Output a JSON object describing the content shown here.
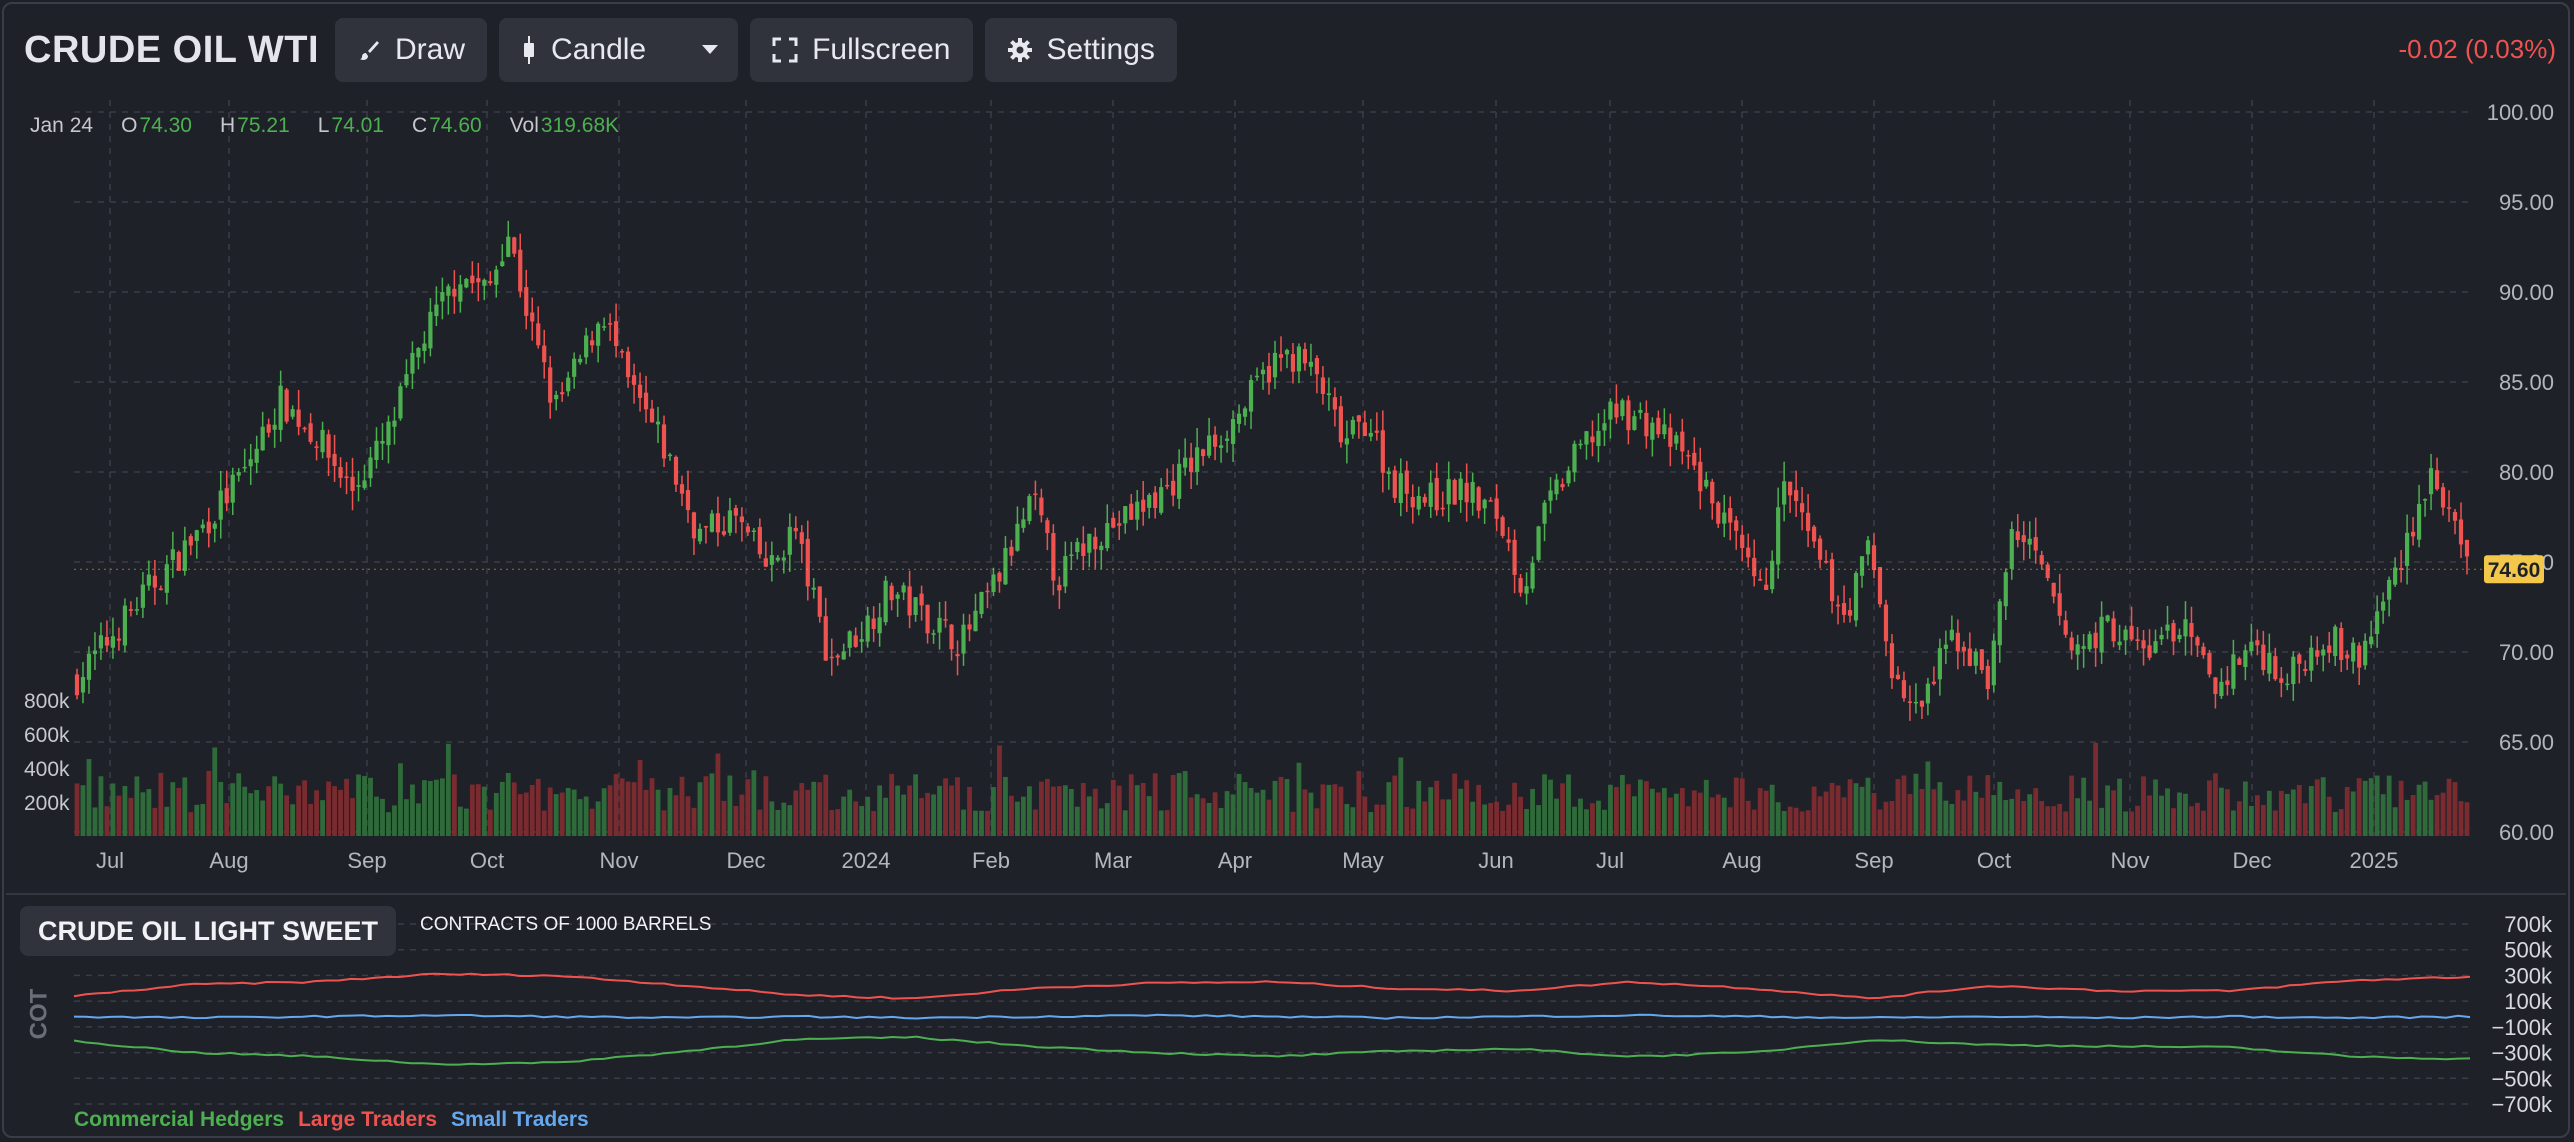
{
  "toolbar": {
    "symbol": "CRUDE OIL WTI",
    "draw_label": "Draw",
    "chart_type_label": "Candle",
    "fullscreen_label": "Fullscreen",
    "settings_label": "Settings",
    "change": "-0.02 (0.03%)"
  },
  "ohlc": {
    "date": "Jan 24",
    "o_key": "O",
    "o": "74.30",
    "h_key": "H",
    "h": "75.21",
    "l_key": "L",
    "l": "74.01",
    "c_key": "C",
    "c": "74.60",
    "vol_key": "Vol",
    "vol": "319.68K"
  },
  "cot": {
    "title": "CRUDE OIL LIGHT SWEET",
    "subtitle": "CONTRACTS OF 1000 BARRELS",
    "axis_label": "COT",
    "legend": [
      {
        "name": "Commercial Hedgers",
        "color": "#4caf50"
      },
      {
        "name": "Large Traders",
        "color": "#ef5350"
      },
      {
        "name": "Small Traders",
        "color": "#64a8f0"
      }
    ]
  },
  "colors": {
    "up": "#4caf50",
    "down": "#ef5350",
    "vol_up": "#2f6b3a",
    "vol_down": "#7a2b2f",
    "last_price_bg": "#f3c84a",
    "grid": "#3a3d48"
  },
  "chart_data": [
    {
      "type": "candlestick",
      "title": "CRUDE OIL WTI",
      "x_ticks": [
        "Jul",
        "Aug",
        "Sep",
        "Oct",
        "Nov",
        "Dec",
        "2024",
        "Feb",
        "Mar",
        "Apr",
        "May",
        "Jun",
        "Jul",
        "Aug",
        "Sep",
        "Oct",
        "Nov",
        "Dec",
        "2025"
      ],
      "y_ticks": [
        "100.00",
        "95.00",
        "90.00",
        "85.00",
        "80.00",
        "75.00",
        "70.00",
        "65.00",
        "60.00"
      ],
      "ylim": [
        60,
        100
      ],
      "last_price": "74.60",
      "close_path": [
        {
          "t": 0.0,
          "y": 68.5
        },
        {
          "t": 0.03,
          "y": 73.5
        },
        {
          "t": 0.05,
          "y": 76.5
        },
        {
          "t": 0.07,
          "y": 80.0
        },
        {
          "t": 0.085,
          "y": 84.0
        },
        {
          "t": 0.1,
          "y": 82.0
        },
        {
          "t": 0.115,
          "y": 79.0
        },
        {
          "t": 0.13,
          "y": 82.0
        },
        {
          "t": 0.145,
          "y": 87.5
        },
        {
          "t": 0.16,
          "y": 91.0
        },
        {
          "t": 0.172,
          "y": 90.0
        },
        {
          "t": 0.18,
          "y": 93.5
        },
        {
          "t": 0.19,
          "y": 88.0
        },
        {
          "t": 0.2,
          "y": 83.5
        },
        {
          "t": 0.21,
          "y": 86.0
        },
        {
          "t": 0.22,
          "y": 89.0
        },
        {
          "t": 0.23,
          "y": 85.0
        },
        {
          "t": 0.245,
          "y": 81.5
        },
        {
          "t": 0.26,
          "y": 76.5
        },
        {
          "t": 0.275,
          "y": 77.5
        },
        {
          "t": 0.29,
          "y": 74.5
        },
        {
          "t": 0.3,
          "y": 77.0
        },
        {
          "t": 0.315,
          "y": 69.5
        },
        {
          "t": 0.33,
          "y": 71.5
        },
        {
          "t": 0.34,
          "y": 73.5
        },
        {
          "t": 0.355,
          "y": 72.0
        },
        {
          "t": 0.37,
          "y": 70.5
        },
        {
          "t": 0.385,
          "y": 74.0
        },
        {
          "t": 0.4,
          "y": 78.5
        },
        {
          "t": 0.41,
          "y": 74.0
        },
        {
          "t": 0.425,
          "y": 76.5
        },
        {
          "t": 0.44,
          "y": 77.5
        },
        {
          "t": 0.455,
          "y": 79.0
        },
        {
          "t": 0.47,
          "y": 81.0
        },
        {
          "t": 0.485,
          "y": 83.0
        },
        {
          "t": 0.5,
          "y": 86.0
        },
        {
          "t": 0.51,
          "y": 86.5
        },
        {
          "t": 0.52,
          "y": 85.0
        },
        {
          "t": 0.53,
          "y": 81.5
        },
        {
          "t": 0.54,
          "y": 83.0
        },
        {
          "t": 0.55,
          "y": 79.5
        },
        {
          "t": 0.565,
          "y": 78.5
        },
        {
          "t": 0.58,
          "y": 79.0
        },
        {
          "t": 0.595,
          "y": 77.5
        },
        {
          "t": 0.605,
          "y": 73.5
        },
        {
          "t": 0.615,
          "y": 78.0
        },
        {
          "t": 0.63,
          "y": 81.5
        },
        {
          "t": 0.645,
          "y": 83.5
        },
        {
          "t": 0.66,
          "y": 82.5
        },
        {
          "t": 0.675,
          "y": 80.5
        },
        {
          "t": 0.69,
          "y": 77.0
        },
        {
          "t": 0.705,
          "y": 73.0
        },
        {
          "t": 0.715,
          "y": 79.5
        },
        {
          "t": 0.725,
          "y": 76.0
        },
        {
          "t": 0.74,
          "y": 72.0
        },
        {
          "t": 0.75,
          "y": 76.0
        },
        {
          "t": 0.76,
          "y": 68.5
        },
        {
          "t": 0.77,
          "y": 66.5
        },
        {
          "t": 0.785,
          "y": 71.0
        },
        {
          "t": 0.8,
          "y": 68.5
        },
        {
          "t": 0.81,
          "y": 77.0
        },
        {
          "t": 0.82,
          "y": 75.0
        },
        {
          "t": 0.835,
          "y": 70.0
        },
        {
          "t": 0.85,
          "y": 71.5
        },
        {
          "t": 0.865,
          "y": 70.0
        },
        {
          "t": 0.88,
          "y": 71.5
        },
        {
          "t": 0.895,
          "y": 68.0
        },
        {
          "t": 0.91,
          "y": 70.5
        },
        {
          "t": 0.925,
          "y": 68.5
        },
        {
          "t": 0.94,
          "y": 71.0
        },
        {
          "t": 0.955,
          "y": 69.5
        },
        {
          "t": 0.97,
          "y": 74.5
        },
        {
          "t": 0.985,
          "y": 80.0
        },
        {
          "t": 1.0,
          "y": 74.6
        }
      ]
    },
    {
      "type": "bar",
      "title": "Volume",
      "y_ticks": [
        "800k",
        "600k",
        "400k",
        "200k"
      ],
      "ylim": [
        0,
        800000
      ],
      "typical_value": 310000
    },
    {
      "type": "line",
      "title": "CRUDE OIL LIGHT SWEET",
      "y_ticks": [
        "700k",
        "500k",
        "300k",
        "100k",
        "−100k",
        "−300k",
        "−500k",
        "−700k"
      ],
      "ylim": [
        -700000,
        700000
      ],
      "x_t": [
        0,
        0.05,
        0.1,
        0.15,
        0.2,
        0.25,
        0.3,
        0.35,
        0.4,
        0.45,
        0.5,
        0.55,
        0.6,
        0.65,
        0.7,
        0.75,
        0.8,
        0.85,
        0.9,
        0.95,
        1.0
      ],
      "series": [
        {
          "name": "Large Traders",
          "values": [
            140000,
            230000,
            250000,
            310000,
            300000,
            230000,
            150000,
            120000,
            200000,
            240000,
            250000,
            200000,
            180000,
            250000,
            200000,
            120000,
            220000,
            180000,
            180000,
            260000,
            290000
          ]
        },
        {
          "name": "Small Traders",
          "values": [
            -20000,
            -30000,
            -20000,
            -10000,
            -20000,
            -30000,
            -20000,
            -30000,
            -20000,
            -10000,
            -20000,
            -30000,
            -20000,
            -10000,
            -20000,
            -30000,
            -20000,
            -30000,
            -20000,
            -30000,
            -20000
          ]
        },
        {
          "name": "Commercial Hedgers",
          "values": [
            -210000,
            -300000,
            -330000,
            -390000,
            -380000,
            -300000,
            -200000,
            -180000,
            -250000,
            -300000,
            -330000,
            -290000,
            -270000,
            -330000,
            -300000,
            -200000,
            -240000,
            -250000,
            -260000,
            -330000,
            -350000
          ]
        }
      ]
    }
  ]
}
